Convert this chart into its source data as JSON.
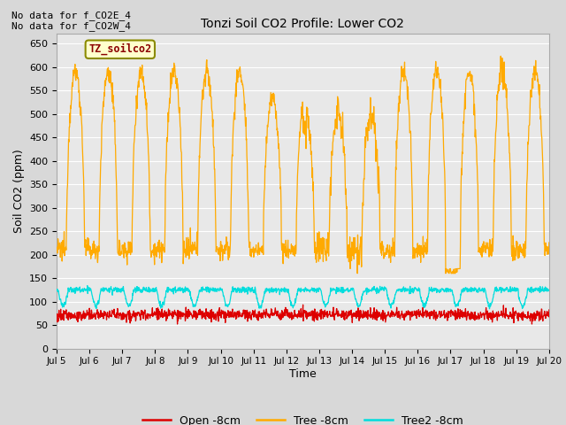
{
  "title": "Tonzi Soil CO2 Profile: Lower CO2",
  "ylabel": "Soil CO2 (ppm)",
  "xlabel": "Time",
  "annotations": [
    "No data for f_CO2E_4",
    "No data for f_CO2W_4"
  ],
  "legend_label": "TZ_soilco2",
  "x_start_day": 5,
  "x_end_day": 20,
  "x_tick_days": [
    5,
    6,
    7,
    8,
    9,
    10,
    11,
    12,
    13,
    14,
    15,
    16,
    17,
    18,
    19,
    20
  ],
  "ylim": [
    0,
    670
  ],
  "yticks": [
    0,
    50,
    100,
    150,
    200,
    250,
    300,
    350,
    400,
    450,
    500,
    550,
    600,
    650
  ],
  "background_color": "#d8d8d8",
  "plot_bg_color": "#e8e8e8",
  "grid_color": "#ffffff",
  "colors": {
    "open": "#dd0000",
    "tree": "#ffaa00",
    "tree2": "#00dddd"
  },
  "legend_entries": [
    "Open -8cm",
    "Tree -8cm",
    "Tree2 -8cm"
  ],
  "open_mean": 70,
  "open_noise": 6,
  "tree_day_peak": 590,
  "tree_night_trough": 210,
  "tree2_day_high": 125,
  "tree2_night_dip": 90,
  "open_base": 68
}
